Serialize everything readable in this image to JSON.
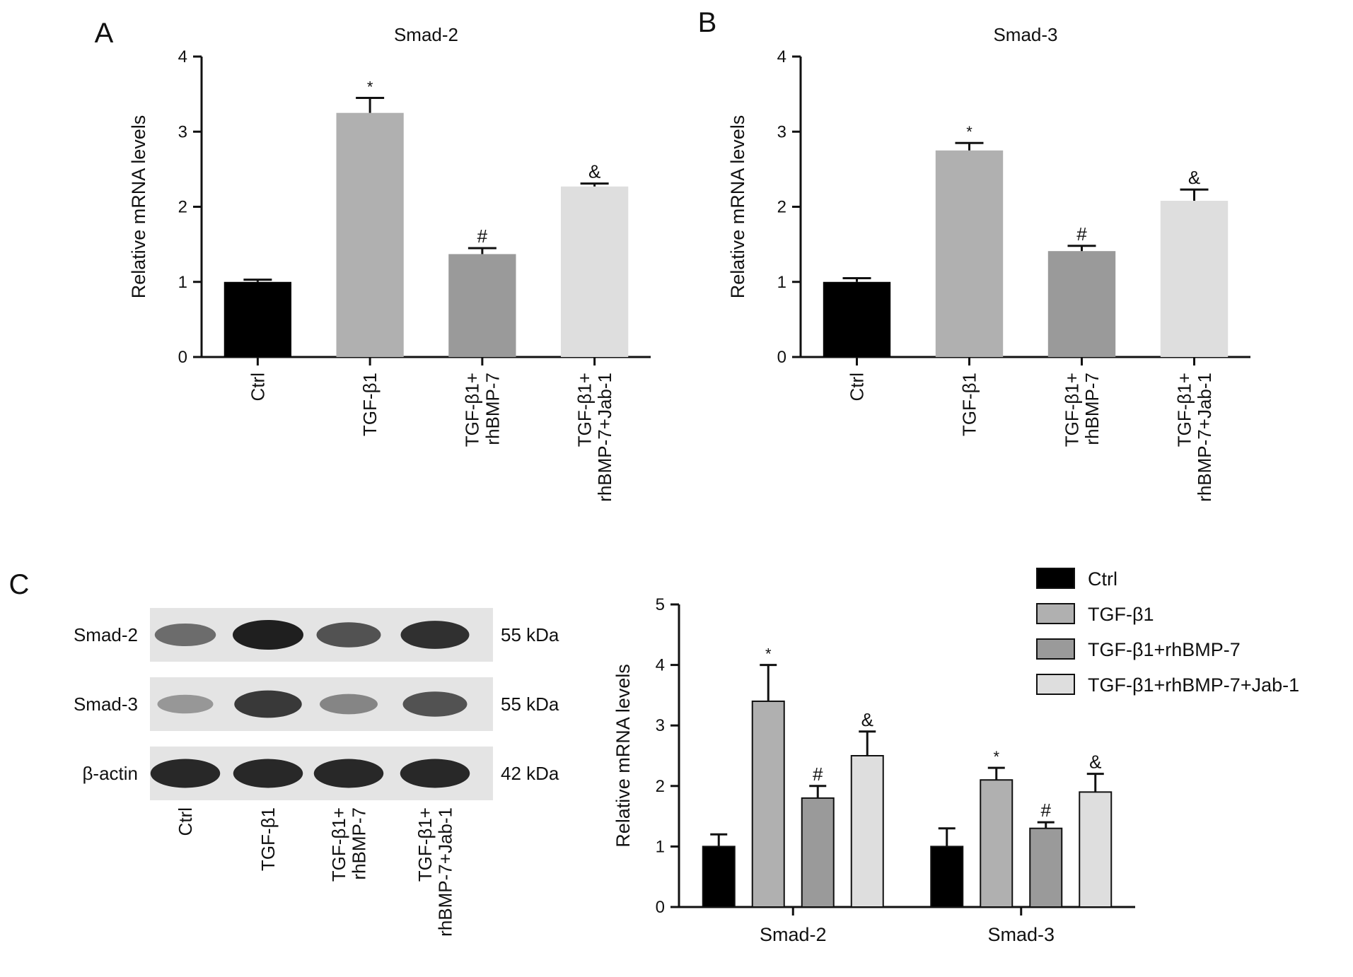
{
  "panels": {
    "A": {
      "letter": "A",
      "chart_data": {
        "type": "bar",
        "title": "Smad-2",
        "ylabel": "Relative mRNA levels",
        "ylim": [
          0,
          4
        ],
        "yticks": [
          "0",
          "1",
          "2",
          "3",
          "4"
        ],
        "categories": [
          "Ctrl",
          "TGF-β1",
          "TGF-β1+\nrhBMP-7",
          "TGF-β1+\nrhBMP-7+Jab-1"
        ],
        "values": [
          1.0,
          3.25,
          1.37,
          2.27
        ],
        "errors": [
          0.03,
          0.2,
          0.08,
          0.04
        ],
        "annotations": [
          "",
          "*",
          "#",
          "&"
        ],
        "colors": [
          "#000000",
          "#b0b0b0",
          "#9a9a9a",
          "#dedede"
        ]
      }
    },
    "B": {
      "letter": "B",
      "chart_data": {
        "type": "bar",
        "title": "Smad-3",
        "ylabel": "Relative mRNA levels",
        "ylim": [
          0,
          4
        ],
        "yticks": [
          "0",
          "1",
          "2",
          "3",
          "4"
        ],
        "categories": [
          "Ctrl",
          "TGF-β1",
          "TGF-β1+\nrhBMP-7",
          "TGF-β1+\nrhBMP-7+Jab-1"
        ],
        "values": [
          1.0,
          2.75,
          1.41,
          2.08
        ],
        "errors": [
          0.05,
          0.1,
          0.07,
          0.15
        ],
        "annotations": [
          "",
          "*",
          "#",
          "&"
        ],
        "colors": [
          "#000000",
          "#b0b0b0",
          "#9a9a9a",
          "#dedede"
        ]
      }
    },
    "C": {
      "letter": "C",
      "blot": {
        "rows": [
          {
            "label": "Smad-2",
            "size": "55 kDa",
            "intensity": [
              0.55,
              1.0,
              0.7,
              0.9
            ]
          },
          {
            "label": "Smad-3",
            "size": "55 kDa",
            "intensity": [
              0.3,
              0.85,
              0.4,
              0.7
            ]
          },
          {
            "label": "β-actin",
            "size": "42 kDa",
            "intensity": [
              0.95,
              0.95,
              0.95,
              0.95
            ]
          }
        ],
        "lanes": [
          "Ctrl",
          "TGF-β1",
          "TGF-β1+\nrhBMP-7",
          "TGF-β1+\nrhBMP-7+Jab-1"
        ]
      },
      "chart_data": {
        "type": "bar",
        "title": "",
        "ylabel": "Relative mRNA levels",
        "ylim": [
          0,
          5
        ],
        "yticks": [
          "0",
          "1",
          "2",
          "3",
          "4",
          "5"
        ],
        "categories": [
          "Smad-2",
          "Smad-3"
        ],
        "series": [
          {
            "name": "Ctrl",
            "color": "#000000",
            "values": [
              1.0,
              1.0
            ],
            "errors": [
              0.2,
              0.3
            ],
            "annotations": [
              "",
              ""
            ]
          },
          {
            "name": "TGF-β1",
            "color": "#b0b0b0",
            "values": [
              3.4,
              2.1
            ],
            "errors": [
              0.6,
              0.2
            ],
            "annotations": [
              "*",
              "*"
            ]
          },
          {
            "name": "TGF-β1+rhBMP-7",
            "color": "#9a9a9a",
            "values": [
              1.8,
              1.3
            ],
            "errors": [
              0.2,
              0.1
            ],
            "annotations": [
              "#",
              "#"
            ]
          },
          {
            "name": "TGF-β1+rhBMP-7+Jab-1",
            "color": "#dedede",
            "values": [
              2.5,
              1.9
            ],
            "errors": [
              0.4,
              0.3
            ],
            "annotations": [
              "&",
              "&"
            ]
          }
        ],
        "legend": "top-right"
      }
    }
  }
}
